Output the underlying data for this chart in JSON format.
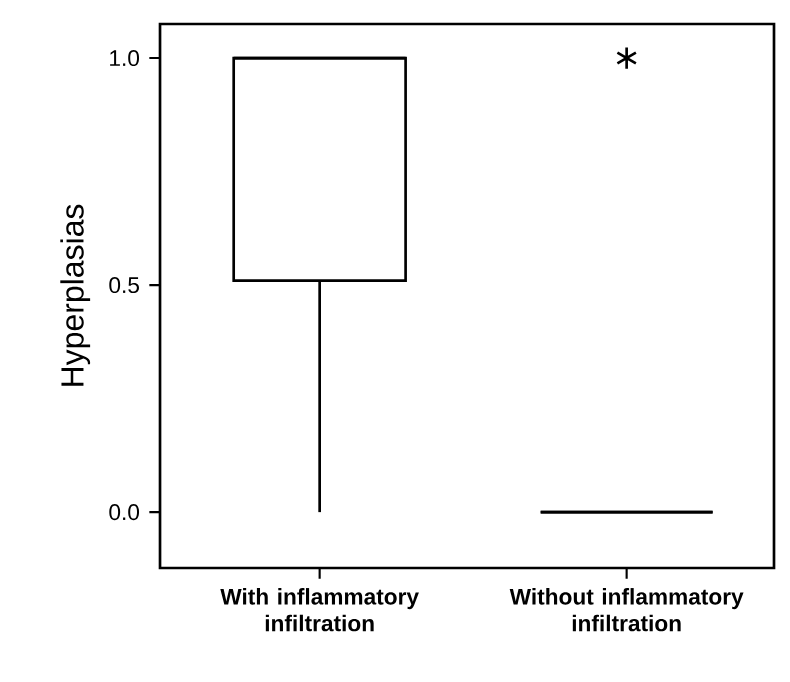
{
  "chart_data": {
    "type": "box",
    "ylabel": "Hyperplasias",
    "categories": [
      "With inflammatory infiltration",
      "Without inflammatory infiltration"
    ],
    "boxes": [
      {
        "low": 0,
        "q1": 0.51,
        "median": 1.0,
        "q3": 1.0,
        "high": 1.0
      },
      {
        "low": 0,
        "q1": 0,
        "median": 0,
        "q3": 0,
        "high": 0,
        "outliers": [
          1.0
        ]
      }
    ],
    "ylim": [
      -0.123,
      1.075
    ],
    "yticks": [
      {
        "value": 0,
        "label": "0.0"
      },
      {
        "value": 0.5,
        "label": "0.5"
      },
      {
        "value": 1.0,
        "label": "1.0"
      }
    ],
    "grid": false
  }
}
